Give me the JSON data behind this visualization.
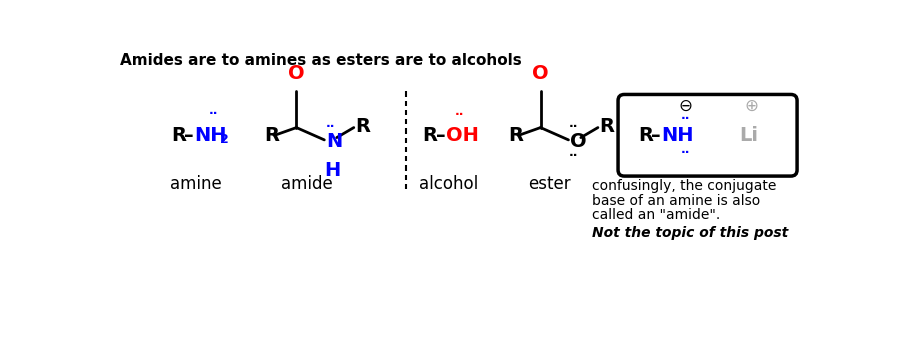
{
  "title": "Amides are to amines as esters are to alcohols",
  "background_color": "#ffffff",
  "black": "#000000",
  "blue": "#0000ff",
  "red": "#ff0000",
  "gray": "#aaaaaa",
  "label_amine": "amine",
  "label_amide": "amide",
  "label_alcohol": "alcohol",
  "label_ester": "ester",
  "note_line1": "confusingly, the conjugate",
  "note_line2": "base of an amine is also",
  "note_line3": "called an \"amide\".",
  "note_line4": "Not the topic of this post"
}
